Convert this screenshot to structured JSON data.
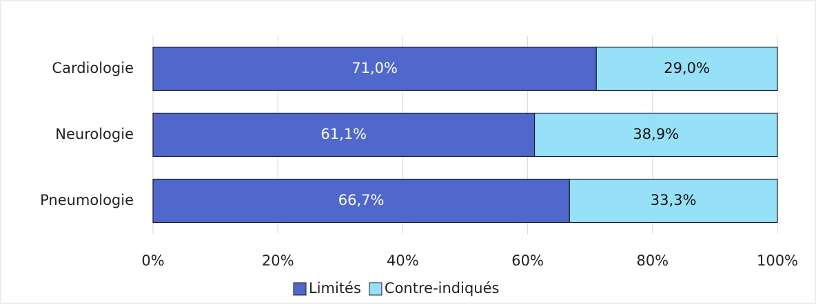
{
  "chart_data": {
    "type": "stacked_barh",
    "categories": [
      "Cardiologie",
      "Neurologie",
      "Pneumologie"
    ],
    "series": [
      {
        "name": "Limités",
        "color": "#5068cc",
        "values": [
          71.0,
          61.1,
          66.7
        ],
        "value_labels": [
          "71,0%",
          "61,1%",
          "66,7%"
        ]
      },
      {
        "name": "Contre-indiqués",
        "color": "#96e1f8",
        "values": [
          29.0,
          38.9,
          33.3
        ],
        "value_labels": [
          "29,0%",
          "38,9%",
          "33,3%"
        ]
      }
    ],
    "xlim": [
      0,
      100
    ],
    "xticks": [
      {
        "value": 0,
        "label": "0%"
      },
      {
        "value": 20,
        "label": "20%"
      },
      {
        "value": 40,
        "label": "40%"
      },
      {
        "value": 60,
        "label": "60%"
      },
      {
        "value": 80,
        "label": "80%"
      },
      {
        "value": 100,
        "label": "100%"
      }
    ],
    "grid": true,
    "legend": "bottom"
  }
}
